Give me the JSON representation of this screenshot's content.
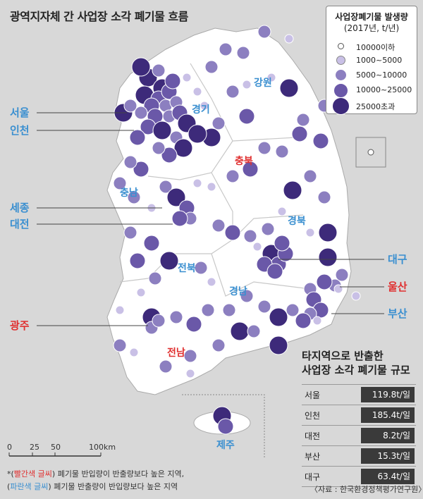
{
  "title": "광역지자체 간 사업장 소각 폐기물 흐름",
  "legend": {
    "title_line1": "사업장폐기물 발생량",
    "title_line2": "(2017년, t/년)",
    "items": [
      "10000이하",
      "1000~5000",
      "5000~10000",
      "10000~25000",
      "25000초과"
    ],
    "colors": [
      "#ffffff",
      "#c9c0e6",
      "#8c7fc0",
      "#6a58a8",
      "#3d2a7a"
    ]
  },
  "regions": {
    "seoul": "서울",
    "incheon": "인천",
    "gyeonggi": "경기",
    "gangwon": "강원",
    "chungbuk": "충북",
    "chungnam": "충남",
    "sejong": "세종",
    "daejeon": "대전",
    "gyeongbuk": "경북",
    "jeonbuk": "전북",
    "daegu": "대구",
    "ulsan": "울산",
    "gyeongnam": "경남",
    "busan": "부산",
    "gwangju": "광주",
    "jeonnam": "전남",
    "jeju": "제주"
  },
  "label_colors": {
    "red": "#e03030",
    "blue": "#3a8fd0"
  },
  "table": {
    "title_line1": "타지역으로 반출한",
    "title_line2": "사업장 소각 폐기물 규모",
    "rows": [
      {
        "name": "서울",
        "value": "119.8t/일"
      },
      {
        "name": "인천",
        "value": "185.4t/일"
      },
      {
        "name": "대전",
        "value": "8.2t/일"
      },
      {
        "name": "부산",
        "value": "15.3t/일"
      },
      {
        "name": "대구",
        "value": "63.4t/일"
      }
    ]
  },
  "scale": {
    "ticks": [
      "0",
      "25",
      "50",
      "100km"
    ]
  },
  "notes": {
    "line1_prefix": "*(",
    "line1_colored": "빨간색 글씨",
    "line1_rest": ") 폐기물 반입량이 반출량보다 높은 지역,",
    "line2_prefix": "(",
    "line2_colored": "파란색 글씨",
    "line2_rest": ") 폐기물 반출량이 반입량보다 높은 지역"
  },
  "source": "〈자료 : 한국환경정책평가연구원〉"
}
